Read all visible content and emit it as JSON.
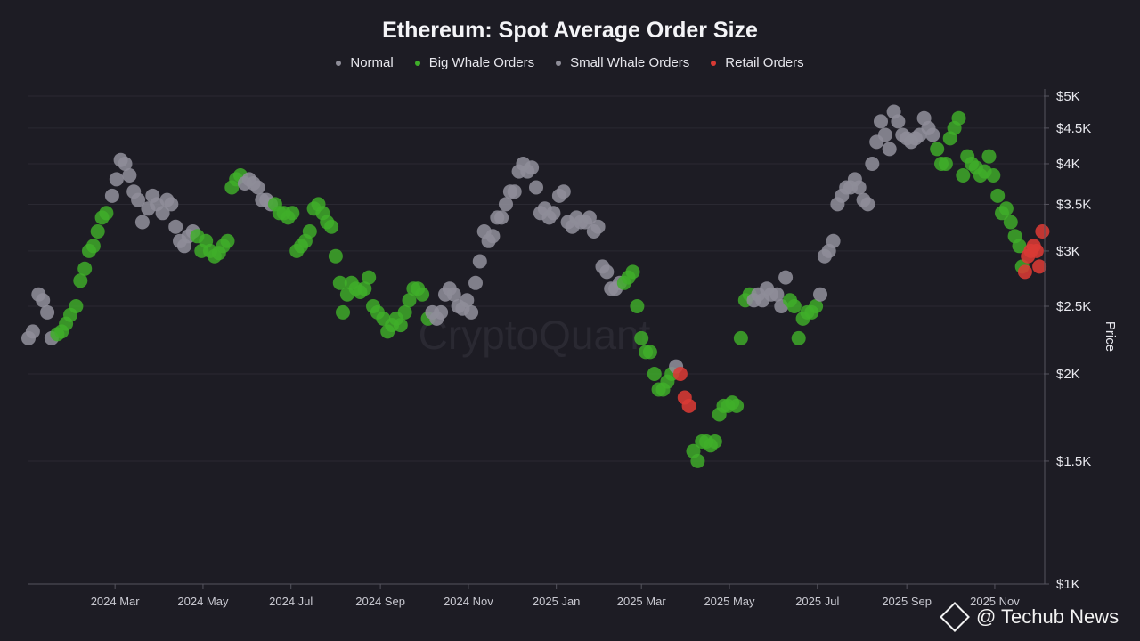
{
  "chart_data": {
    "type": "scatter",
    "title": "Ethereum: Spot Average Order Size",
    "ylabel": "Price",
    "xlabel": "",
    "y_scale": "log",
    "ylim": [
      1000,
      5000
    ],
    "xlim": [
      "2024-01-01",
      "2025-12-05"
    ],
    "y_ticks": [
      {
        "value": 5000,
        "label": "$5K"
      },
      {
        "value": 4500,
        "label": "$4.5K"
      },
      {
        "value": 4000,
        "label": "$4K"
      },
      {
        "value": 3500,
        "label": "$3.5K"
      },
      {
        "value": 3000,
        "label": "$3K"
      },
      {
        "value": 2500,
        "label": "$2.5K"
      },
      {
        "value": 2000,
        "label": "$2K"
      },
      {
        "value": 1500,
        "label": "$1.5K"
      },
      {
        "value": 1000,
        "label": "$1K"
      }
    ],
    "x_ticks": [
      {
        "date": "2024-03-01",
        "label": "2024 Mar"
      },
      {
        "date": "2024-05-01",
        "label": "2024 May"
      },
      {
        "date": "2024-07-01",
        "label": "2024 Jul"
      },
      {
        "date": "2024-09-01",
        "label": "2024 Sep"
      },
      {
        "date": "2024-11-01",
        "label": "2024 Nov"
      },
      {
        "date": "2025-01-01",
        "label": "2025 Jan"
      },
      {
        "date": "2025-03-01",
        "label": "2025 Mar"
      },
      {
        "date": "2025-05-01",
        "label": "2025 May"
      },
      {
        "date": "2025-07-01",
        "label": "2025 Jul"
      },
      {
        "date": "2025-09-01",
        "label": "2025 Sep"
      },
      {
        "date": "2025-11-01",
        "label": "2025 Nov"
      }
    ],
    "grid": true,
    "legend_position": "top",
    "series": [
      {
        "name": "Normal",
        "color": "#8e8d98"
      },
      {
        "name": "Big Whale Orders",
        "color": "#3fae2a"
      },
      {
        "name": "Small Whale Orders",
        "color": "#8e8d98"
      },
      {
        "name": "Retail Orders",
        "color": "#d93a34"
      }
    ],
    "points": [
      [
        "2024-01-01",
        2250,
        0
      ],
      [
        "2024-01-04",
        2300,
        0
      ],
      [
        "2024-01-08",
        2600,
        0
      ],
      [
        "2024-01-11",
        2550,
        0
      ],
      [
        "2024-01-14",
        2450,
        0
      ],
      [
        "2024-01-17",
        2250,
        0
      ],
      [
        "2024-01-21",
        2280,
        1
      ],
      [
        "2024-01-24",
        2300,
        1
      ],
      [
        "2024-01-27",
        2360,
        1
      ],
      [
        "2024-01-30",
        2430,
        1
      ],
      [
        "2024-02-03",
        2500,
        1
      ],
      [
        "2024-02-06",
        2720,
        1
      ],
      [
        "2024-02-09",
        2830,
        1
      ],
      [
        "2024-02-12",
        3000,
        1
      ],
      [
        "2024-02-15",
        3050,
        1
      ],
      [
        "2024-02-18",
        3200,
        1
      ],
      [
        "2024-02-21",
        3350,
        1
      ],
      [
        "2024-02-24",
        3400,
        1
      ],
      [
        "2024-02-28",
        3600,
        0
      ],
      [
        "2024-03-02",
        3800,
        0
      ],
      [
        "2024-03-05",
        4050,
        0
      ],
      [
        "2024-03-08",
        4000,
        0
      ],
      [
        "2024-03-11",
        3850,
        0
      ],
      [
        "2024-03-14",
        3650,
        0
      ],
      [
        "2024-03-17",
        3550,
        0
      ],
      [
        "2024-03-20",
        3300,
        0
      ],
      [
        "2024-03-24",
        3450,
        0
      ],
      [
        "2024-03-27",
        3600,
        0
      ],
      [
        "2024-03-30",
        3500,
        0
      ],
      [
        "2024-04-03",
        3400,
        0
      ],
      [
        "2024-04-06",
        3550,
        0
      ],
      [
        "2024-04-09",
        3500,
        0
      ],
      [
        "2024-04-12",
        3250,
        0
      ],
      [
        "2024-04-15",
        3100,
        0
      ],
      [
        "2024-04-18",
        3050,
        0
      ],
      [
        "2024-04-21",
        3150,
        0
      ],
      [
        "2024-04-24",
        3200,
        0
      ],
      [
        "2024-04-27",
        3150,
        1
      ],
      [
        "2024-04-30",
        3000,
        1
      ],
      [
        "2024-05-03",
        3100,
        1
      ],
      [
        "2024-05-06",
        3000,
        1
      ],
      [
        "2024-05-09",
        2950,
        1
      ],
      [
        "2024-05-12",
        2980,
        1
      ],
      [
        "2024-05-15",
        3050,
        1
      ],
      [
        "2024-05-18",
        3100,
        1
      ],
      [
        "2024-05-21",
        3700,
        1
      ],
      [
        "2024-05-24",
        3800,
        1
      ],
      [
        "2024-05-27",
        3850,
        1
      ],
      [
        "2024-05-30",
        3750,
        0
      ],
      [
        "2024-06-02",
        3800,
        0
      ],
      [
        "2024-06-05",
        3750,
        0
      ],
      [
        "2024-06-08",
        3700,
        0
      ],
      [
        "2024-06-11",
        3550,
        0
      ],
      [
        "2024-06-14",
        3550,
        0
      ],
      [
        "2024-06-17",
        3500,
        0
      ],
      [
        "2024-06-20",
        3500,
        1
      ],
      [
        "2024-06-23",
        3400,
        1
      ],
      [
        "2024-06-26",
        3400,
        1
      ],
      [
        "2024-06-29",
        3350,
        1
      ],
      [
        "2024-07-02",
        3400,
        1
      ],
      [
        "2024-07-05",
        3000,
        1
      ],
      [
        "2024-07-08",
        3050,
        1
      ],
      [
        "2024-07-11",
        3100,
        1
      ],
      [
        "2024-07-14",
        3200,
        1
      ],
      [
        "2024-07-17",
        3450,
        1
      ],
      [
        "2024-07-20",
        3500,
        1
      ],
      [
        "2024-07-23",
        3400,
        1
      ],
      [
        "2024-07-26",
        3300,
        1
      ],
      [
        "2024-07-29",
        3250,
        1
      ],
      [
        "2024-08-01",
        2950,
        1
      ],
      [
        "2024-08-04",
        2700,
        1
      ],
      [
        "2024-08-06",
        2450,
        1
      ],
      [
        "2024-08-09",
        2600,
        1
      ],
      [
        "2024-08-12",
        2700,
        1
      ],
      [
        "2024-08-15",
        2650,
        1
      ],
      [
        "2024-08-18",
        2620,
        1
      ],
      [
        "2024-08-21",
        2650,
        1
      ],
      [
        "2024-08-24",
        2750,
        1
      ],
      [
        "2024-08-27",
        2500,
        1
      ],
      [
        "2024-08-30",
        2450,
        1
      ],
      [
        "2024-09-03",
        2400,
        1
      ],
      [
        "2024-09-06",
        2300,
        1
      ],
      [
        "2024-09-09",
        2350,
        1
      ],
      [
        "2024-09-12",
        2400,
        1
      ],
      [
        "2024-09-15",
        2350,
        1
      ],
      [
        "2024-09-18",
        2450,
        1
      ],
      [
        "2024-09-21",
        2550,
        1
      ],
      [
        "2024-09-24",
        2650,
        1
      ],
      [
        "2024-09-27",
        2650,
        1
      ],
      [
        "2024-09-30",
        2600,
        1
      ],
      [
        "2024-10-04",
        2400,
        1
      ],
      [
        "2024-10-07",
        2450,
        0
      ],
      [
        "2024-10-10",
        2400,
        0
      ],
      [
        "2024-10-13",
        2450,
        0
      ],
      [
        "2024-10-16",
        2600,
        0
      ],
      [
        "2024-10-19",
        2650,
        0
      ],
      [
        "2024-10-22",
        2600,
        0
      ],
      [
        "2024-10-25",
        2500,
        0
      ],
      [
        "2024-10-28",
        2480,
        0
      ],
      [
        "2024-10-31",
        2550,
        0
      ],
      [
        "2024-11-03",
        2450,
        0
      ],
      [
        "2024-11-06",
        2700,
        0
      ],
      [
        "2024-11-09",
        2900,
        0
      ],
      [
        "2024-11-12",
        3200,
        0
      ],
      [
        "2024-11-15",
        3100,
        0
      ],
      [
        "2024-11-18",
        3150,
        0
      ],
      [
        "2024-11-21",
        3350,
        0
      ],
      [
        "2024-11-24",
        3350,
        0
      ],
      [
        "2024-11-27",
        3500,
        0
      ],
      [
        "2024-11-30",
        3650,
        0
      ],
      [
        "2024-12-03",
        3650,
        0
      ],
      [
        "2024-12-06",
        3900,
        0
      ],
      [
        "2024-12-09",
        4000,
        0
      ],
      [
        "2024-12-12",
        3900,
        0
      ],
      [
        "2024-12-15",
        3950,
        0
      ],
      [
        "2024-12-18",
        3700,
        0
      ],
      [
        "2024-12-21",
        3400,
        0
      ],
      [
        "2024-12-24",
        3450,
        0
      ],
      [
        "2024-12-27",
        3350,
        0
      ],
      [
        "2024-12-30",
        3400,
        0
      ],
      [
        "2025-01-03",
        3600,
        0
      ],
      [
        "2025-01-06",
        3650,
        0
      ],
      [
        "2025-01-09",
        3300,
        0
      ],
      [
        "2025-01-12",
        3250,
        0
      ],
      [
        "2025-01-15",
        3350,
        0
      ],
      [
        "2025-01-18",
        3300,
        0
      ],
      [
        "2025-01-21",
        3300,
        0
      ],
      [
        "2025-01-24",
        3350,
        0
      ],
      [
        "2025-01-27",
        3200,
        0
      ],
      [
        "2025-01-30",
        3250,
        0
      ],
      [
        "2025-02-02",
        2850,
        0
      ],
      [
        "2025-02-05",
        2800,
        0
      ],
      [
        "2025-02-08",
        2650,
        0
      ],
      [
        "2025-02-11",
        2650,
        0
      ],
      [
        "2025-02-14",
        2700,
        0
      ],
      [
        "2025-02-17",
        2700,
        1
      ],
      [
        "2025-02-20",
        2750,
        1
      ],
      [
        "2025-02-23",
        2800,
        1
      ],
      [
        "2025-02-26",
        2500,
        1
      ],
      [
        "2025-03-01",
        2250,
        1
      ],
      [
        "2025-03-04",
        2150,
        1
      ],
      [
        "2025-03-07",
        2150,
        1
      ],
      [
        "2025-03-10",
        2000,
        1
      ],
      [
        "2025-03-13",
        1900,
        1
      ],
      [
        "2025-03-16",
        1900,
        1
      ],
      [
        "2025-03-19",
        1950,
        1
      ],
      [
        "2025-03-22",
        2000,
        1
      ],
      [
        "2025-03-25",
        2050,
        2
      ],
      [
        "2025-03-28",
        2000,
        3
      ],
      [
        "2025-03-31",
        1850,
        3
      ],
      [
        "2025-04-03",
        1800,
        3
      ],
      [
        "2025-04-06",
        1550,
        1
      ],
      [
        "2025-04-09",
        1500,
        1
      ],
      [
        "2025-04-12",
        1600,
        1
      ],
      [
        "2025-04-15",
        1600,
        1
      ],
      [
        "2025-04-18",
        1580,
        1
      ],
      [
        "2025-04-21",
        1600,
        1
      ],
      [
        "2025-04-24",
        1750,
        1
      ],
      [
        "2025-04-27",
        1800,
        1
      ],
      [
        "2025-04-30",
        1800,
        1
      ],
      [
        "2025-05-03",
        1820,
        1
      ],
      [
        "2025-05-06",
        1800,
        1
      ],
      [
        "2025-05-09",
        2250,
        1
      ],
      [
        "2025-05-12",
        2550,
        1
      ],
      [
        "2025-05-15",
        2600,
        1
      ],
      [
        "2025-05-18",
        2550,
        0
      ],
      [
        "2025-05-21",
        2600,
        0
      ],
      [
        "2025-05-24",
        2550,
        0
      ],
      [
        "2025-05-27",
        2650,
        0
      ],
      [
        "2025-05-30",
        2600,
        0
      ],
      [
        "2025-06-03",
        2600,
        0
      ],
      [
        "2025-06-06",
        2500,
        0
      ],
      [
        "2025-06-09",
        2750,
        0
      ],
      [
        "2025-06-12",
        2550,
        1
      ],
      [
        "2025-06-15",
        2500,
        1
      ],
      [
        "2025-06-18",
        2250,
        1
      ],
      [
        "2025-06-21",
        2400,
        1
      ],
      [
        "2025-06-24",
        2450,
        1
      ],
      [
        "2025-06-27",
        2450,
        1
      ],
      [
        "2025-06-30",
        2500,
        1
      ],
      [
        "2025-07-03",
        2600,
        0
      ],
      [
        "2025-07-06",
        2950,
        0
      ],
      [
        "2025-07-09",
        3000,
        0
      ],
      [
        "2025-07-12",
        3100,
        0
      ],
      [
        "2025-07-15",
        3500,
        0
      ],
      [
        "2025-07-18",
        3600,
        0
      ],
      [
        "2025-07-21",
        3700,
        0
      ],
      [
        "2025-07-24",
        3700,
        0
      ],
      [
        "2025-07-27",
        3800,
        0
      ],
      [
        "2025-07-30",
        3700,
        0
      ],
      [
        "2025-08-02",
        3550,
        0
      ],
      [
        "2025-08-05",
        3500,
        0
      ],
      [
        "2025-08-08",
        4000,
        0
      ],
      [
        "2025-08-11",
        4300,
        0
      ],
      [
        "2025-08-14",
        4600,
        0
      ],
      [
        "2025-08-17",
        4400,
        0
      ],
      [
        "2025-08-20",
        4200,
        0
      ],
      [
        "2025-08-23",
        4750,
        0
      ],
      [
        "2025-08-26",
        4600,
        0
      ],
      [
        "2025-08-29",
        4400,
        0
      ],
      [
        "2025-09-01",
        4350,
        0
      ],
      [
        "2025-09-04",
        4300,
        0
      ],
      [
        "2025-09-07",
        4350,
        0
      ],
      [
        "2025-09-10",
        4400,
        0
      ],
      [
        "2025-09-13",
        4650,
        0
      ],
      [
        "2025-09-16",
        4500,
        0
      ],
      [
        "2025-09-19",
        4400,
        0
      ],
      [
        "2025-09-22",
        4200,
        1
      ],
      [
        "2025-09-25",
        4000,
        1
      ],
      [
        "2025-09-28",
        4000,
        1
      ],
      [
        "2025-10-01",
        4350,
        1
      ],
      [
        "2025-10-04",
        4500,
        1
      ],
      [
        "2025-10-07",
        4650,
        1
      ],
      [
        "2025-10-10",
        3850,
        1
      ],
      [
        "2025-10-13",
        4100,
        1
      ],
      [
        "2025-10-16",
        4000,
        1
      ],
      [
        "2025-10-19",
        3950,
        1
      ],
      [
        "2025-10-22",
        3850,
        1
      ],
      [
        "2025-10-25",
        3900,
        1
      ],
      [
        "2025-10-28",
        4100,
        1
      ],
      [
        "2025-10-31",
        3850,
        1
      ],
      [
        "2025-11-03",
        3600,
        1
      ],
      [
        "2025-11-06",
        3400,
        1
      ],
      [
        "2025-11-09",
        3450,
        1
      ],
      [
        "2025-11-12",
        3300,
        1
      ],
      [
        "2025-11-15",
        3150,
        1
      ],
      [
        "2025-11-18",
        3050,
        1
      ],
      [
        "2025-11-20",
        2850,
        1
      ],
      [
        "2025-11-22",
        2800,
        3
      ],
      [
        "2025-11-24",
        2950,
        3
      ],
      [
        "2025-11-26",
        3000,
        3
      ],
      [
        "2025-11-28",
        3050,
        3
      ],
      [
        "2025-11-30",
        3000,
        3
      ],
      [
        "2025-12-02",
        2850,
        3
      ],
      [
        "2025-12-04",
        3200,
        3
      ]
    ]
  },
  "watermark": "CryptoQuant",
  "footer": {
    "brand": "@ Techub News"
  }
}
